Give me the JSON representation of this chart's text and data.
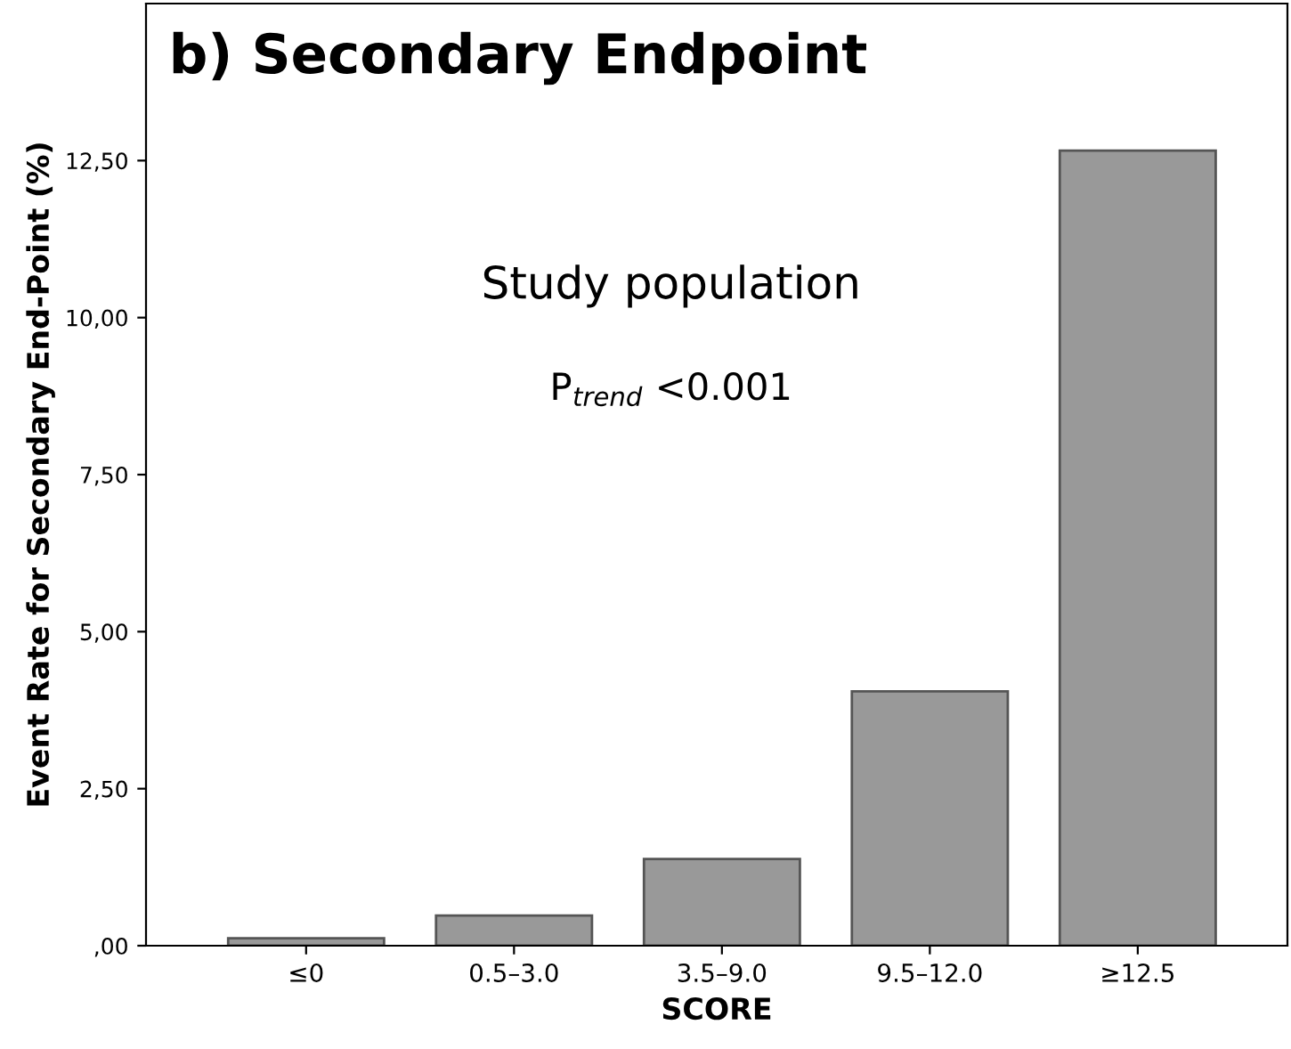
{
  "chart_data": {
    "type": "bar",
    "title": "b) Secondary Endpoint",
    "xlabel": "SCORE",
    "ylabel": "Event Rate for Secondary End-Point (%)",
    "categories": [
      "≤0",
      "0.5–3.0",
      "3.5–9.0",
      "9.5–12.0",
      "≥12.5"
    ],
    "values": [
      0.12,
      0.48,
      1.38,
      4.05,
      12.66
    ],
    "color": "#999999",
    "ylim": [
      0,
      15
    ],
    "yticks": [
      {
        "value": 0,
        "label": ",00"
      },
      {
        "value": 2.5,
        "label": "2,50"
      },
      {
        "value": 5,
        "label": "5,00"
      },
      {
        "value": 7.5,
        "label": "7,50"
      },
      {
        "value": 10,
        "label": "10,00"
      },
      {
        "value": 12.5,
        "label": "12,50"
      }
    ],
    "grid": false,
    "legend": false,
    "annotations": [
      "Study population",
      "P$_{trend}$ <0.001"
    ]
  }
}
